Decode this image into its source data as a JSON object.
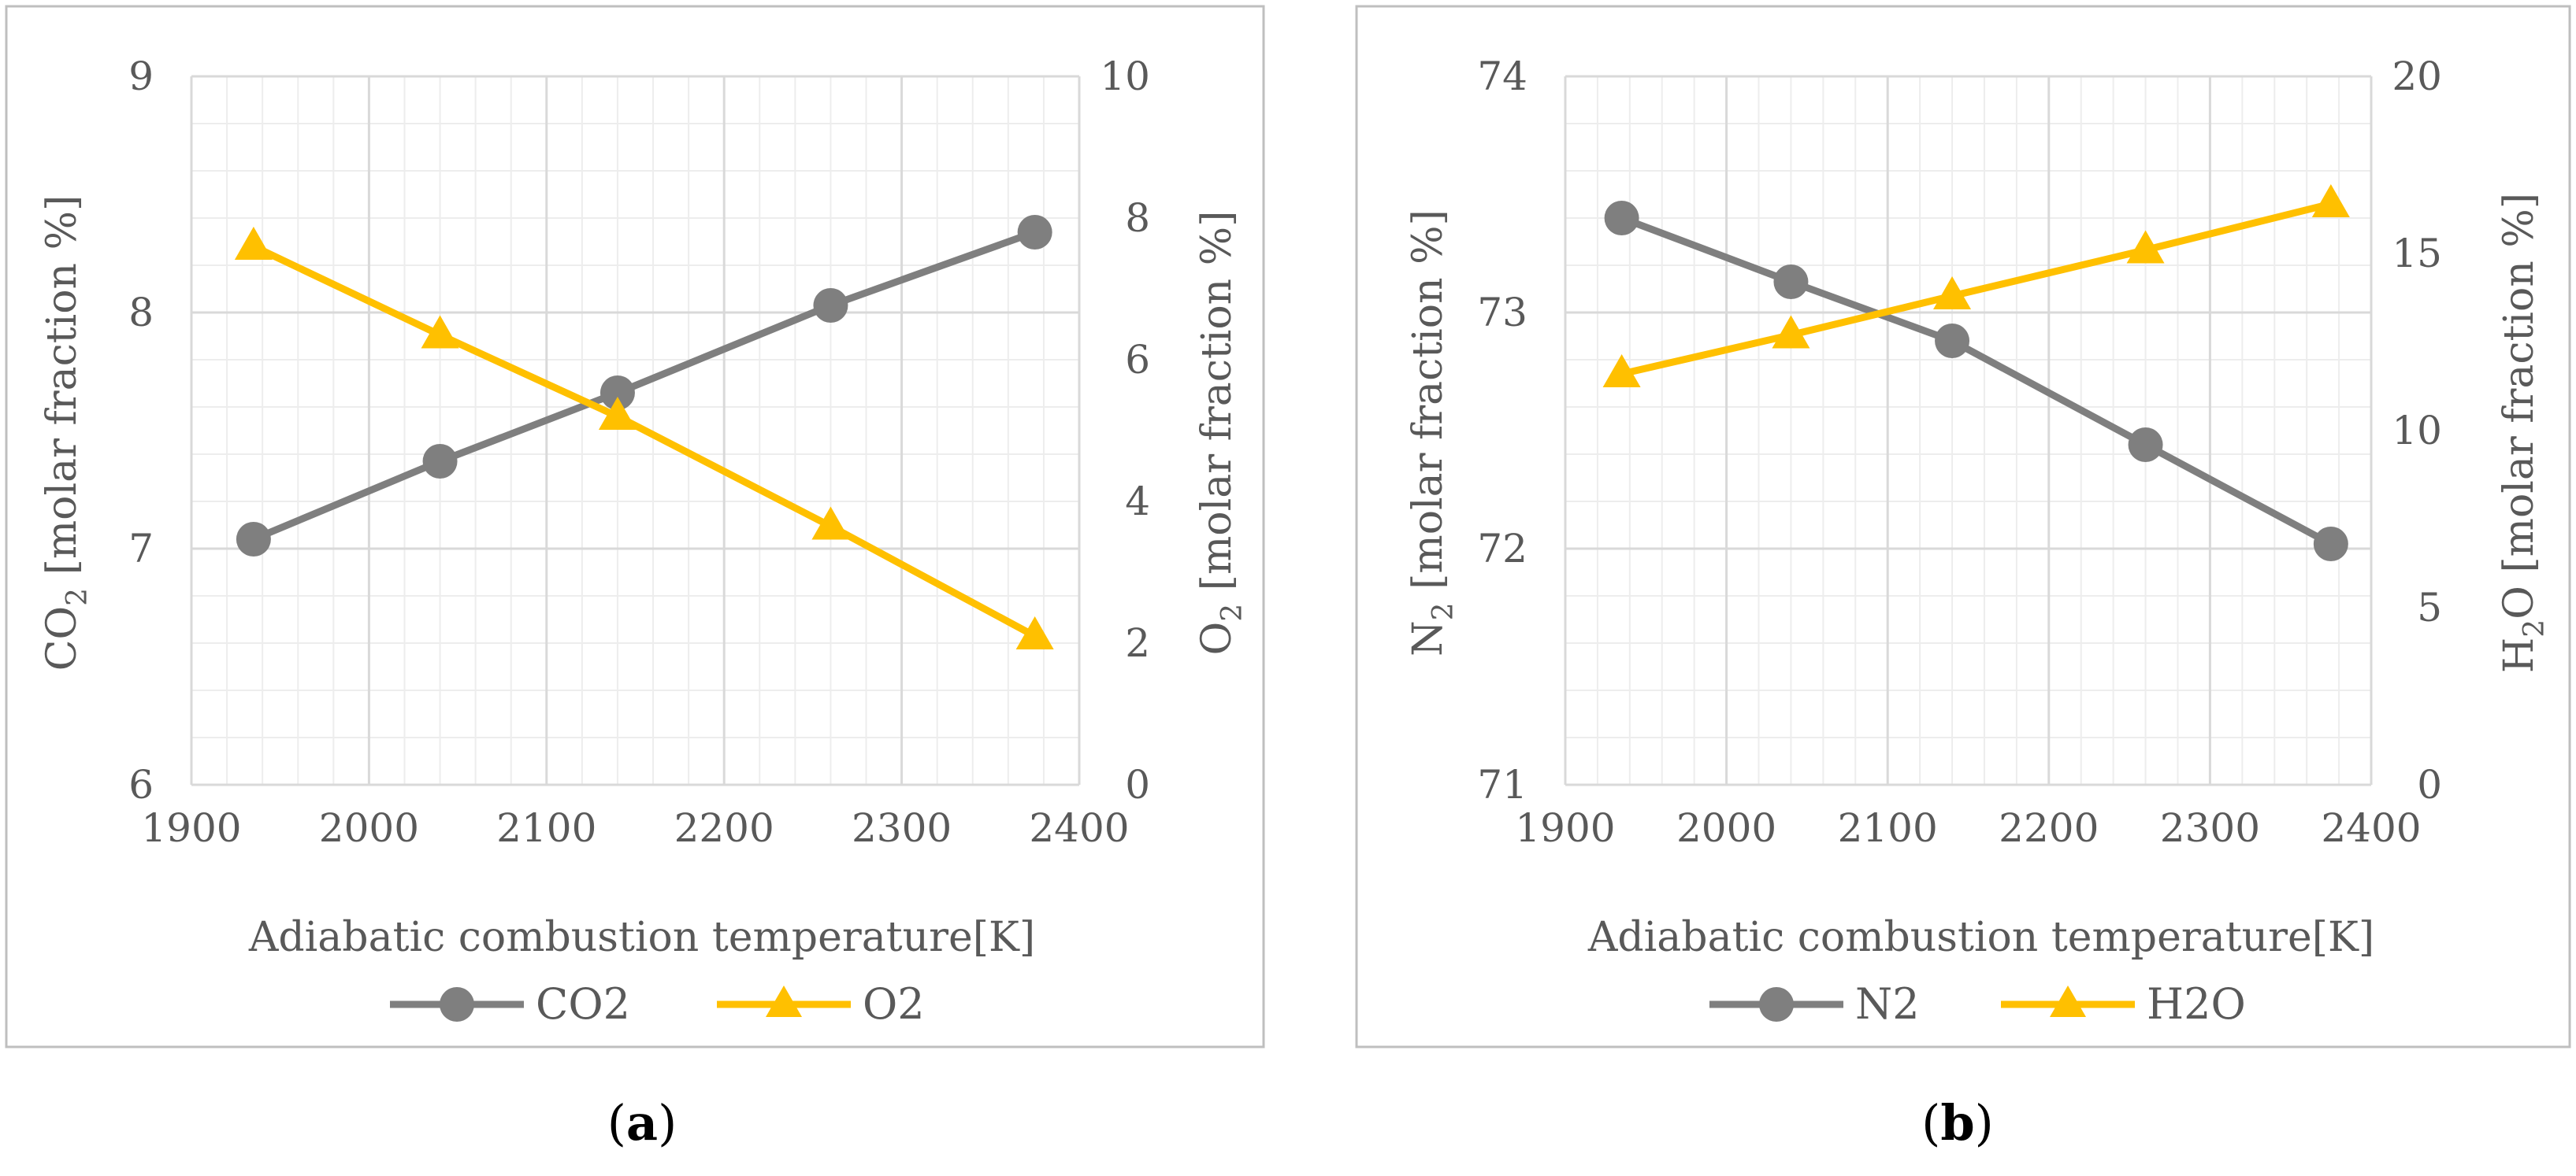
{
  "colors": {
    "gray_series": "#7f7f7f",
    "yellow_series": "#ffc000",
    "axis_text": "#595959"
  },
  "panels": [
    {
      "label_open": "(",
      "label_letter": "a",
      "label_close": ")"
    },
    {
      "label_open": "(",
      "label_letter": "b",
      "label_close": ")"
    }
  ],
  "chart_data": [
    {
      "type": "line",
      "panel": "a",
      "x": [
        1935,
        2040,
        2140,
        2260,
        2375
      ],
      "xlabel": "Adiabatic combustion temperature[K]",
      "xlim": [
        1900,
        2400
      ],
      "x_ticks": [
        "1900",
        "2000",
        "2100",
        "2200",
        "2300",
        "2400"
      ],
      "ylabel_left": {
        "main": "CO",
        "sub": "2",
        "rest": " [molar fraction %]"
      },
      "ylim_left": [
        6,
        9
      ],
      "y_ticks_left": [
        "6",
        "7",
        "8",
        "9"
      ],
      "ylabel_right": {
        "main": "O",
        "sub": "2",
        "rest": " [molar fraction %]"
      },
      "ylim_right": [
        0,
        10
      ],
      "y_ticks_right": [
        "0",
        "2",
        "4",
        "6",
        "8",
        "10"
      ],
      "grid": true,
      "series": [
        {
          "name": "CO2",
          "axis": "left",
          "marker": "circle",
          "color": "#7f7f7f",
          "values": [
            7.04,
            7.37,
            7.66,
            8.03,
            8.34
          ]
        },
        {
          "name": "O2",
          "axis": "right",
          "marker": "triangle",
          "color": "#ffc000",
          "values": [
            7.6,
            6.35,
            5.2,
            3.65,
            2.1
          ]
        }
      ],
      "legend": "bottom"
    },
    {
      "type": "line",
      "panel": "b",
      "x": [
        1935,
        2040,
        2140,
        2260,
        2375
      ],
      "xlabel": "Adiabatic combustion temperature[K]",
      "xlim": [
        1900,
        2400
      ],
      "x_ticks": [
        "1900",
        "2000",
        "2100",
        "2200",
        "2300",
        "2400"
      ],
      "ylabel_left": {
        "main": "N",
        "sub": "2",
        "rest": " [molar fraction %]"
      },
      "ylim_left": [
        71,
        74
      ],
      "y_ticks_left": [
        "71",
        "72",
        "73",
        "74"
      ],
      "ylabel_right": {
        "main": "H",
        "sub": "2",
        "rest": "O [molar fraction %]"
      },
      "ylim_right": [
        0,
        20
      ],
      "y_ticks_right": [
        "0",
        "5",
        "10",
        "15",
        "20"
      ],
      "grid": true,
      "series": [
        {
          "name": "N2",
          "axis": "left",
          "marker": "circle",
          "color": "#7f7f7f",
          "values": [
            73.4,
            73.13,
            72.88,
            72.44,
            72.02
          ]
        },
        {
          "name": "H2O",
          "axis": "right",
          "marker": "triangle",
          "color": "#ffc000",
          "values": [
            11.6,
            12.7,
            13.8,
            15.1,
            16.4
          ]
        }
      ],
      "legend": "bottom"
    }
  ]
}
